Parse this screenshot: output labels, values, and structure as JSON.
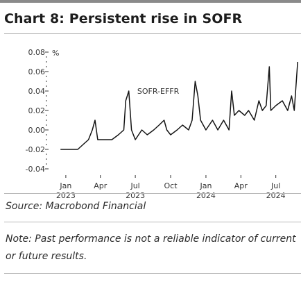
{
  "header": {
    "title": "Chart 8: Persistent rise in SOFR"
  },
  "footer": {
    "source": "Source: Macrobond Financial",
    "note": "Note: Past performance is not a reliable indicator of current or future results."
  },
  "colors": {
    "line": "#141414",
    "text": "#333333",
    "rule": "#b9b9b9"
  },
  "chart_data": {
    "type": "line",
    "title": "",
    "ylabel": "%",
    "ylim": [
      -0.04,
      0.08
    ],
    "yticks": [
      0.08,
      0.06,
      0.04,
      0.02,
      0.0,
      -0.02,
      -0.04
    ],
    "ytick_labels": [
      "0.08",
      "0.06",
      "0.04",
      "0.02",
      "0.00",
      "-0.02",
      "-0.04"
    ],
    "xlim": [
      "2022-12-01",
      "2024-09-15"
    ],
    "xticks": [
      {
        "date": "2023-01-15",
        "label": "Jan",
        "year": "2023"
      },
      {
        "date": "2023-04-15",
        "label": "Apr",
        "year": ""
      },
      {
        "date": "2023-07-15",
        "label": "Jul",
        "year": "2023"
      },
      {
        "date": "2023-10-15",
        "label": "Oct",
        "year": ""
      },
      {
        "date": "2024-01-15",
        "label": "Jan",
        "year": "2024"
      },
      {
        "date": "2024-04-15",
        "label": "Apr",
        "year": ""
      },
      {
        "date": "2024-07-15",
        "label": "Jul",
        "year": "2024"
      }
    ],
    "series": [
      {
        "name": "SOFR-EFFR",
        "points": [
          [
            "2023-01-01",
            -0.02
          ],
          [
            "2023-01-15",
            -0.02
          ],
          [
            "2023-02-01",
            -0.02
          ],
          [
            "2023-02-15",
            -0.02
          ],
          [
            "2023-03-01",
            -0.015
          ],
          [
            "2023-03-15",
            -0.01
          ],
          [
            "2023-03-25",
            0.0
          ],
          [
            "2023-04-01",
            0.01
          ],
          [
            "2023-04-08",
            -0.01
          ],
          [
            "2023-04-15",
            -0.01
          ],
          [
            "2023-05-01",
            -0.01
          ],
          [
            "2023-05-15",
            -0.01
          ],
          [
            "2023-06-01",
            -0.005
          ],
          [
            "2023-06-15",
            0.0
          ],
          [
            "2023-06-20",
            0.03
          ],
          [
            "2023-06-28",
            0.04
          ],
          [
            "2023-07-05",
            0.0
          ],
          [
            "2023-07-15",
            -0.01
          ],
          [
            "2023-08-01",
            0.0
          ],
          [
            "2023-08-15",
            -0.005
          ],
          [
            "2023-09-01",
            0.0
          ],
          [
            "2023-09-15",
            0.005
          ],
          [
            "2023-09-28",
            0.01
          ],
          [
            "2023-10-05",
            0.0
          ],
          [
            "2023-10-15",
            -0.005
          ],
          [
            "2023-11-01",
            0.0
          ],
          [
            "2023-11-15",
            0.005
          ],
          [
            "2023-12-01",
            0.0
          ],
          [
            "2023-12-10",
            0.01
          ],
          [
            "2023-12-18",
            0.05
          ],
          [
            "2023-12-25",
            0.035
          ],
          [
            "2024-01-01",
            0.01
          ],
          [
            "2024-01-15",
            0.0
          ],
          [
            "2024-02-01",
            0.01
          ],
          [
            "2024-02-15",
            0.0
          ],
          [
            "2024-03-01",
            0.01
          ],
          [
            "2024-03-15",
            0.0
          ],
          [
            "2024-03-22",
            0.04
          ],
          [
            "2024-03-29",
            0.015
          ],
          [
            "2024-04-10",
            0.02
          ],
          [
            "2024-04-25",
            0.015
          ],
          [
            "2024-05-05",
            0.02
          ],
          [
            "2024-05-20",
            0.01
          ],
          [
            "2024-06-01",
            0.03
          ],
          [
            "2024-06-10",
            0.02
          ],
          [
            "2024-06-20",
            0.025
          ],
          [
            "2024-06-28",
            0.065
          ],
          [
            "2024-07-02",
            0.02
          ],
          [
            "2024-07-15",
            0.025
          ],
          [
            "2024-08-01",
            0.03
          ],
          [
            "2024-08-15",
            0.02
          ],
          [
            "2024-08-25",
            0.035
          ],
          [
            "2024-09-01",
            0.02
          ],
          [
            "2024-09-10",
            0.07
          ]
        ]
      }
    ],
    "annotations": [
      {
        "text": "SOFR-EFFR",
        "x": "2023-07-20",
        "y": 0.037
      }
    ],
    "grid": false
  }
}
